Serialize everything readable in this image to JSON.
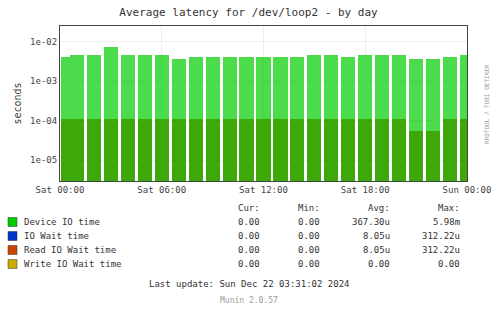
{
  "chart_data": {
    "type": "bar",
    "title": "Average latency for /dev/loop2 - by day",
    "y_label": "seconds",
    "log": "y",
    "grid": true,
    "x": [
      1800,
      3600,
      7200,
      10800,
      14400,
      18000,
      21600,
      25200,
      28800,
      32400,
      36000,
      39600,
      43200,
      46800,
      50400,
      54000,
      57600,
      61200,
      64800,
      68400,
      72000,
      75600,
      79200,
      82800,
      86400
    ],
    "series": [
      {
        "name": "Read IO Wait time",
        "color": "#cc4400",
        "values": [
          0.00011,
          0.00011,
          0.00011,
          0.00011,
          0.00011,
          0.00011,
          0.00011,
          0.00011,
          0.00011,
          0.00011,
          0.00011,
          0.00011,
          0.00011,
          0.00011,
          0.00011,
          0.00011,
          0.00011,
          0.00011,
          0.00011,
          0.00011,
          0.00011,
          5.5e-05,
          5.5e-05,
          0.00011,
          0.00011
        ]
      },
      {
        "name": "Device IO time",
        "color": "#00cc00",
        "values": [
          0.0042,
          0.0045,
          0.0045,
          0.0072,
          0.0045,
          0.0045,
          0.0045,
          0.0036,
          0.0041,
          0.004,
          0.004,
          0.004,
          0.004,
          0.004,
          0.004,
          0.0045,
          0.0045,
          0.0042,
          0.0045,
          0.0045,
          0.0045,
          0.0036,
          0.0036,
          0.004,
          0.0045
        ]
      }
    ],
    "xlim": [
      0,
      86400
    ],
    "xticks": [
      {
        "value": 0,
        "label": "Sat 00:00"
      },
      {
        "value": 21600,
        "label": "Sat 06:00"
      },
      {
        "value": 43200,
        "label": "Sat 12:00"
      },
      {
        "value": 64800,
        "label": "Sat 18:00"
      },
      {
        "value": 86400,
        "label": "Sun 00:00"
      }
    ],
    "ylim": [
      3e-06,
      0.025
    ],
    "yticks": [
      {
        "value": 1e-05,
        "label": "1e-05"
      },
      {
        "value": 0.0001,
        "label": "1e-04"
      },
      {
        "value": 0.001,
        "label": "1e-03"
      },
      {
        "value": 0.01,
        "label": "1e-02"
      }
    ],
    "legend_table": {
      "columns": [
        "Cur:",
        "Min:",
        "Avg:",
        "Max:"
      ],
      "rows": [
        {
          "label": "Device IO time",
          "color": "#00cc00",
          "values": [
            "0.00",
            "0.00",
            "367.30u",
            "5.98m"
          ]
        },
        {
          "label": "IO Wait time",
          "color": "#0033cc",
          "values": [
            "0.00",
            "0.00",
            "8.05u",
            "312.22u"
          ]
        },
        {
          "label": "Read IO Wait time",
          "color": "#cc4400",
          "values": [
            "0.00",
            "0.00",
            "8.05u",
            "312.22u"
          ]
        },
        {
          "label": "Write IO Wait time",
          "color": "#ccaa00",
          "values": [
            "0.00",
            "0.00",
            "0.00",
            "0.00"
          ]
        }
      ]
    },
    "annotations": [
      "Last update: Sun Dec 22 03:31:02 2024",
      "Munin 2.0.57",
      "RRDTOOL / TOBI OETIKER"
    ]
  }
}
